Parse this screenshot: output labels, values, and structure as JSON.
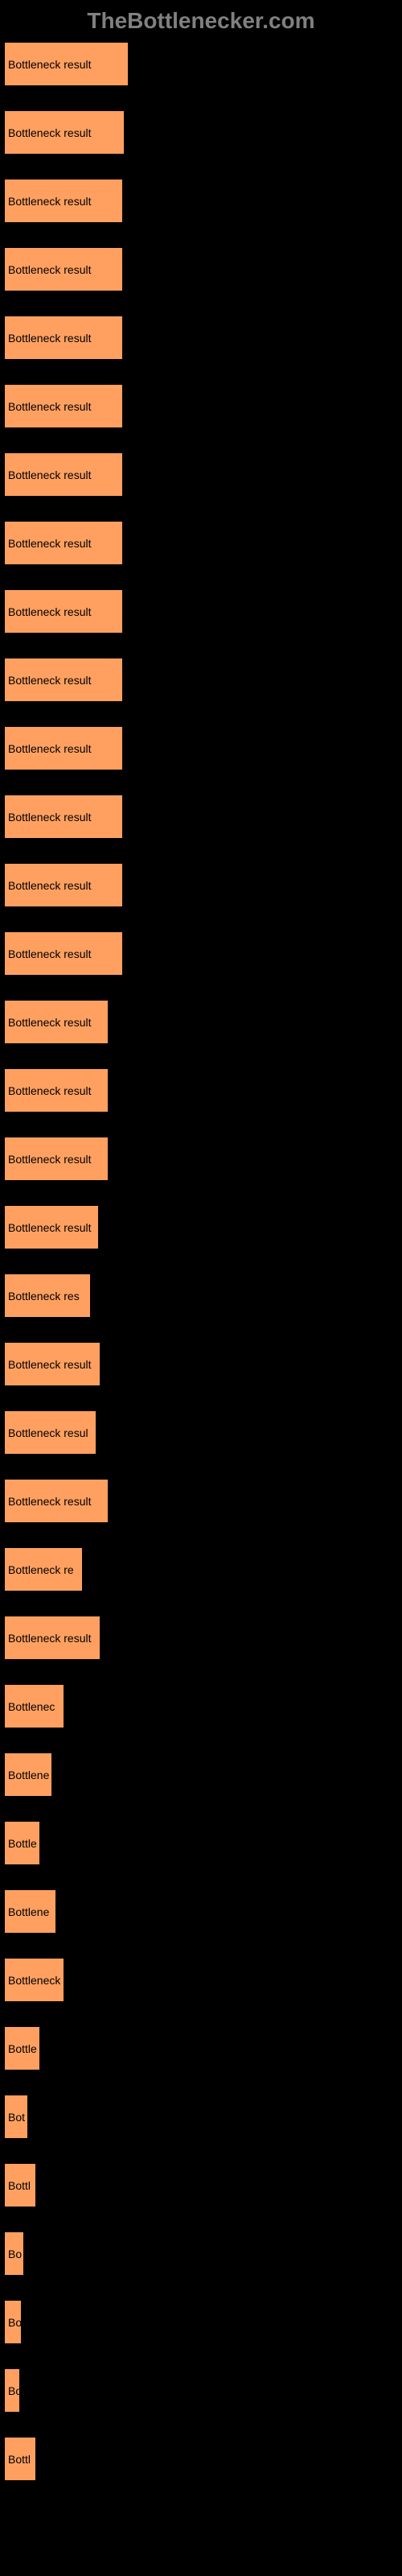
{
  "header": {
    "text": "TheBottlenecker.com"
  },
  "chart": {
    "type": "bar",
    "background_color": "#000000",
    "bar_color": "#ffa060",
    "bar_border_color": "#000000",
    "label_color": "#000000",
    "header_color": "#808080",
    "max_bar_width": 155,
    "bars": [
      {
        "label": "Bottleneck result",
        "width": 155
      },
      {
        "label": "Bottleneck result",
        "width": 150
      },
      {
        "label": "Bottleneck result",
        "width": 148
      },
      {
        "label": "Bottleneck result",
        "width": 148
      },
      {
        "label": "Bottleneck result",
        "width": 148
      },
      {
        "label": "Bottleneck result",
        "width": 148
      },
      {
        "label": "Bottleneck result",
        "width": 148
      },
      {
        "label": "Bottleneck result",
        "width": 148
      },
      {
        "label": "Bottleneck result",
        "width": 148
      },
      {
        "label": "Bottleneck result",
        "width": 148
      },
      {
        "label": "Bottleneck result",
        "width": 148
      },
      {
        "label": "Bottleneck result",
        "width": 148
      },
      {
        "label": "Bottleneck result",
        "width": 148
      },
      {
        "label": "Bottleneck result",
        "width": 148
      },
      {
        "label": "Bottleneck result",
        "width": 130
      },
      {
        "label": "Bottleneck result",
        "width": 130
      },
      {
        "label": "Bottleneck result",
        "width": 130
      },
      {
        "label": "Bottleneck result",
        "width": 118
      },
      {
        "label": "Bottleneck res",
        "width": 108
      },
      {
        "label": "Bottleneck result",
        "width": 120
      },
      {
        "label": "Bottleneck resul",
        "width": 115
      },
      {
        "label": "Bottleneck result",
        "width": 130
      },
      {
        "label": "Bottleneck re",
        "width": 98
      },
      {
        "label": "Bottleneck result",
        "width": 120
      },
      {
        "label": "Bottlenec",
        "width": 75
      },
      {
        "label": "Bottlene",
        "width": 60
      },
      {
        "label": "Bottle",
        "width": 45
      },
      {
        "label": "Bottlene",
        "width": 65
      },
      {
        "label": "Bottleneck",
        "width": 75
      },
      {
        "label": "Bottle",
        "width": 45
      },
      {
        "label": "Bot",
        "width": 30
      },
      {
        "label": "Bottl",
        "width": 40
      },
      {
        "label": "Bo",
        "width": 25
      },
      {
        "label": "Bo",
        "width": 22
      },
      {
        "label": "Bo",
        "width": 20
      },
      {
        "label": "Bottl",
        "width": 40
      }
    ]
  }
}
